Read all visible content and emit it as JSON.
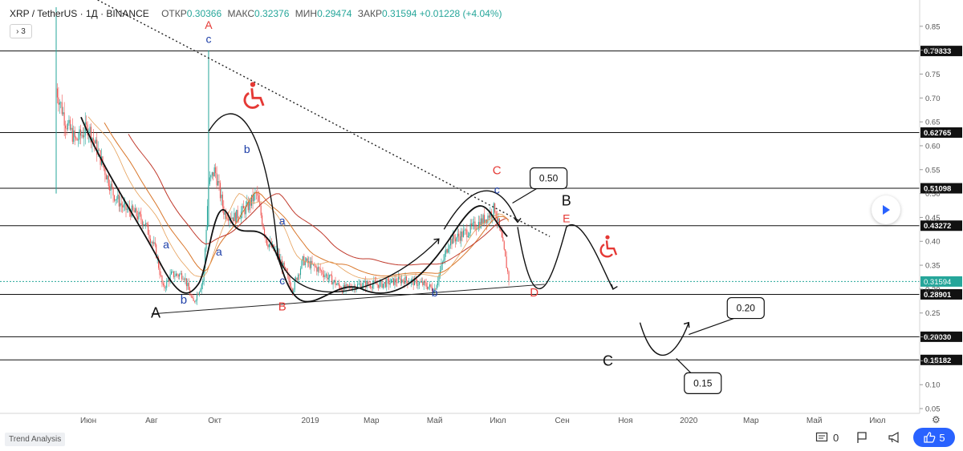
{
  "header": {
    "symbol": "XRP / TetherUS · 1Д · BINANCE",
    "open_label": "ОТКР",
    "open": "0.30366",
    "high_label": "МАКС",
    "high": "0.32376",
    "low_label": "МИН",
    "low": "0.29474",
    "close_label": "ЗАКР",
    "close": "0.31594",
    "change": "+0.01228 (+4.04%)"
  },
  "collapse_count": "3",
  "footer": {
    "brand": "Trend Analysis",
    "comments": "0",
    "likes": "5"
  },
  "colors": {
    "up": "#26a69a",
    "down": "#ef5350",
    "current_price": "#26a69a",
    "wave_red": "#e53935",
    "wave_blue": "#1e3fa8",
    "like_button": "#2962ff"
  },
  "icons": [
    "chevron-right-icon",
    "play-icon",
    "settings-icon",
    "comment-icon",
    "flag-icon",
    "megaphone-icon",
    "thumbs-up-icon",
    "wheelchair-icon"
  ],
  "chart_data": {
    "type": "candlestick",
    "x_ticks": [
      "Июн",
      "Авг",
      "Окт",
      "2019",
      "Мар",
      "Май",
      "Июл",
      "Сен",
      "Ноя",
      "2020",
      "Мар",
      "Май",
      "Июл"
    ],
    "y_ticks": [
      0.85,
      0.8,
      0.75,
      0.7,
      0.65,
      0.6,
      0.55,
      0.5,
      0.45,
      0.4,
      0.35,
      0.3,
      0.25,
      0.2,
      0.15,
      0.1,
      0.05
    ],
    "ylim": [
      0.04,
      0.9
    ],
    "current_price": 0.31594,
    "levels": [
      0.79833,
      0.62765,
      0.51098,
      0.43272,
      0.28901,
      0.2003,
      0.15182
    ],
    "level_labels": [
      "0.79833",
      "0.62765",
      "0.51098",
      "0.43272",
      "0.28901",
      "0.20030",
      "0.15182"
    ],
    "current_label": "0.31594",
    "price_series": [
      {
        "t": "2018-05-01",
        "v": 0.72
      },
      {
        "t": "2018-05-10",
        "v": 0.65
      },
      {
        "t": "2018-05-20",
        "v": 0.61
      },
      {
        "t": "2018-06-01",
        "v": 0.64
      },
      {
        "t": "2018-06-15",
        "v": 0.56
      },
      {
        "t": "2018-06-25",
        "v": 0.5
      },
      {
        "t": "2018-07-05",
        "v": 0.47
      },
      {
        "t": "2018-07-15",
        "v": 0.46
      },
      {
        "t": "2018-07-25",
        "v": 0.44
      },
      {
        "t": "2018-08-05",
        "v": 0.38
      },
      {
        "t": "2018-08-12",
        "v": 0.3
      },
      {
        "t": "2018-08-20",
        "v": 0.33
      },
      {
        "t": "2018-09-01",
        "v": 0.33
      },
      {
        "t": "2018-09-10",
        "v": 0.27
      },
      {
        "t": "2018-09-20",
        "v": 0.32
      },
      {
        "t": "2018-09-25",
        "v": 0.52
      },
      {
        "t": "2018-10-01",
        "v": 0.55
      },
      {
        "t": "2018-10-10",
        "v": 0.46
      },
      {
        "t": "2018-10-20",
        "v": 0.45
      },
      {
        "t": "2018-11-01",
        "v": 0.47
      },
      {
        "t": "2018-11-10",
        "v": 0.5
      },
      {
        "t": "2018-11-20",
        "v": 0.4
      },
      {
        "t": "2018-12-01",
        "v": 0.37
      },
      {
        "t": "2018-12-15",
        "v": 0.3
      },
      {
        "t": "2018-12-25",
        "v": 0.36
      },
      {
        "t": "2019-01-10",
        "v": 0.34
      },
      {
        "t": "2019-02-01",
        "v": 0.3
      },
      {
        "t": "2019-02-20",
        "v": 0.31
      },
      {
        "t": "2019-03-10",
        "v": 0.31
      },
      {
        "t": "2019-04-01",
        "v": 0.32
      },
      {
        "t": "2019-04-20",
        "v": 0.31
      },
      {
        "t": "2019-05-01",
        "v": 0.3
      },
      {
        "t": "2019-05-15",
        "v": 0.4
      },
      {
        "t": "2019-06-01",
        "v": 0.42
      },
      {
        "t": "2019-06-20",
        "v": 0.45
      },
      {
        "t": "2019-06-28",
        "v": 0.47
      },
      {
        "t": "2019-07-05",
        "v": 0.4
      },
      {
        "t": "2019-07-10",
        "v": 0.34
      },
      {
        "t": "2019-07-12",
        "v": 0.316
      }
    ],
    "annotations": [
      {
        "text": "A",
        "color": "red"
      },
      {
        "text": "c",
        "color": "blue"
      },
      {
        "text": "b",
        "color": "blue"
      },
      {
        "text": "a",
        "color": "blue"
      },
      {
        "text": "a",
        "color": "blue"
      },
      {
        "text": "a",
        "color": "blue"
      },
      {
        "text": "b",
        "color": "blue"
      },
      {
        "text": "c",
        "color": "blue"
      },
      {
        "text": "B",
        "color": "red"
      },
      {
        "text": "b",
        "color": "blue"
      },
      {
        "text": "C",
        "color": "red"
      },
      {
        "text": "c",
        "color": "blue"
      },
      {
        "text": "E",
        "color": "red"
      },
      {
        "text": "D",
        "color": "red"
      },
      {
        "text": "A",
        "color": "black"
      },
      {
        "text": "B",
        "color": "black"
      },
      {
        "text": "C",
        "color": "black"
      }
    ],
    "callouts": [
      "0.50",
      "0.20",
      "0.15"
    ]
  }
}
